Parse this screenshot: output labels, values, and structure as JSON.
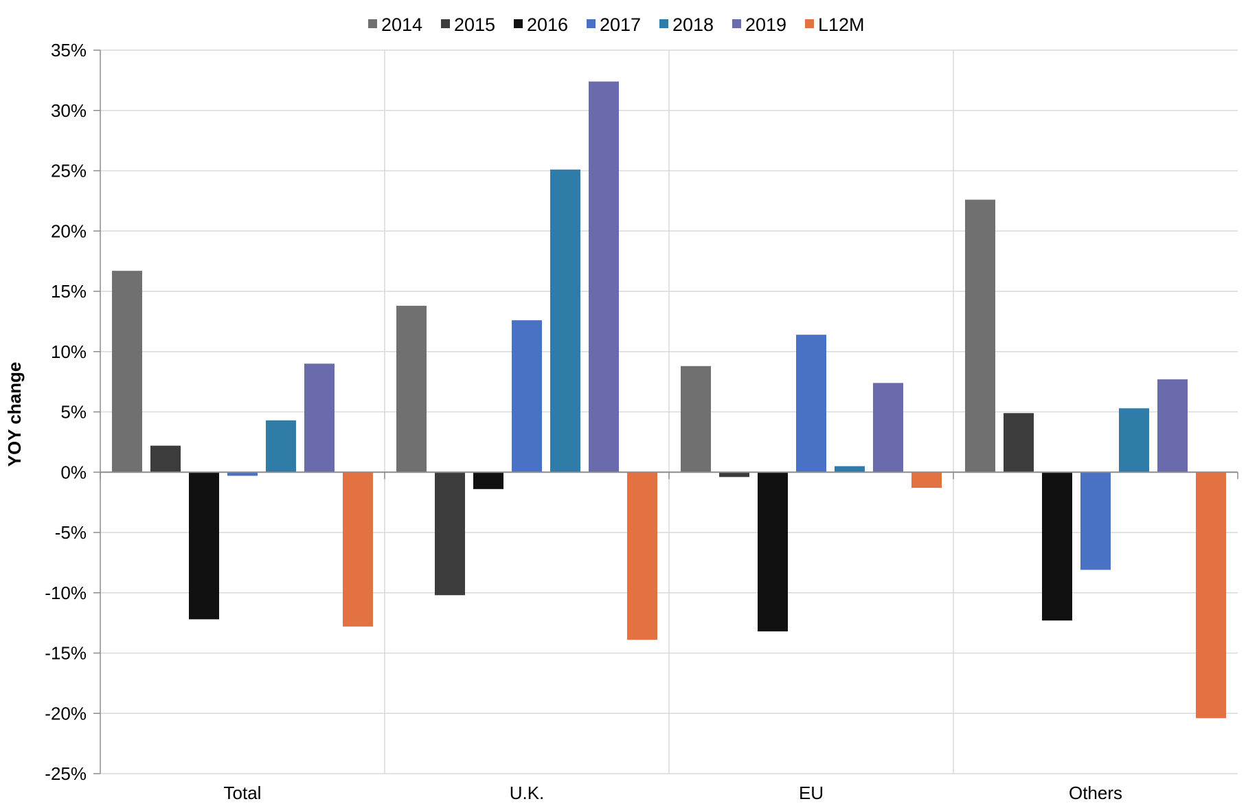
{
  "chart_data": {
    "type": "bar",
    "title": "",
    "xlabel": "",
    "ylabel": "YOY change",
    "categories": [
      "Total",
      "U.K.",
      "EU",
      "Others"
    ],
    "ylim": [
      -25,
      35
    ],
    "yticks": [
      35,
      30,
      25,
      20,
      15,
      10,
      5,
      0,
      -5,
      -10,
      -15,
      -20,
      -25
    ],
    "ytick_labels": [
      "35%",
      "30%",
      "25%",
      "20%",
      "15%",
      "10%",
      "5%",
      "0%",
      "-5%",
      "-10%",
      "-15%",
      "-20%",
      "-25%"
    ],
    "grid": true,
    "legend_position": "top-center",
    "series": [
      {
        "name": "2014",
        "color": "#707070",
        "values": [
          16.7,
          13.8,
          8.8,
          22.6
        ]
      },
      {
        "name": "2015",
        "color": "#3c3c3c",
        "values": [
          2.2,
          -10.2,
          -0.4,
          4.9
        ]
      },
      {
        "name": "2016",
        "color": "#111111",
        "values": [
          -12.2,
          -1.4,
          -13.2,
          -12.3
        ]
      },
      {
        "name": "2017",
        "color": "#4a72c4",
        "values": [
          -0.3,
          12.6,
          11.4,
          -8.1
        ]
      },
      {
        "name": "2018",
        "color": "#2f7ca9",
        "values": [
          4.3,
          25.1,
          0.5,
          5.3
        ]
      },
      {
        "name": "2019",
        "color": "#6a6bad",
        "values": [
          9.0,
          32.4,
          7.4,
          7.7
        ]
      },
      {
        "name": "L12M",
        "color": "#e37243",
        "values": [
          -12.8,
          -13.9,
          -1.3,
          -20.4
        ]
      }
    ]
  }
}
